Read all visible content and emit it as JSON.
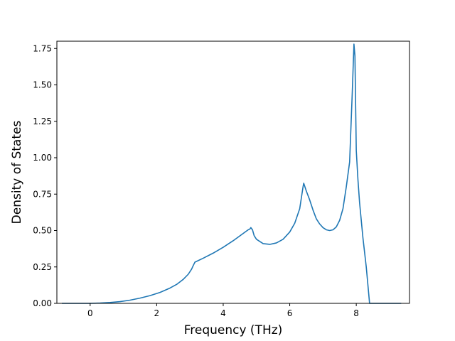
{
  "chart_data": {
    "type": "line",
    "xlabel": "Frequency (THz)",
    "ylabel": "Density of States",
    "xlim": [
      -1.0,
      9.6
    ],
    "ylim": [
      0.0,
      1.8
    ],
    "xticks": [
      0,
      2,
      4,
      6,
      8
    ],
    "yticks": [
      0.0,
      0.25,
      0.5,
      0.75,
      1.0,
      1.25,
      1.5,
      1.75
    ],
    "xtick_labels": [
      "0",
      "2",
      "4",
      "6",
      "8"
    ],
    "ytick_labels": [
      "0.00",
      "0.25",
      "0.50",
      "0.75",
      "1.00",
      "1.25",
      "1.50",
      "1.75"
    ],
    "grid": false,
    "line_color": "#1f77b4",
    "series": [
      {
        "x": [
          -0.85,
          -0.5,
          0.0,
          0.3,
          0.6,
          0.9,
          1.2,
          1.5,
          1.8,
          2.1,
          2.4,
          2.6,
          2.8,
          2.95,
          3.05,
          3.1,
          3.15,
          3.4,
          3.7,
          4.0,
          4.3,
          4.6,
          4.75,
          4.8,
          4.83,
          4.88,
          4.93,
          5.0,
          5.2,
          5.4,
          5.6,
          5.8,
          6.0,
          6.15,
          6.3,
          6.4,
          6.42,
          6.5,
          6.6,
          6.7,
          6.8,
          6.9,
          7.0,
          7.1,
          7.2,
          7.3,
          7.4,
          7.5,
          7.6,
          7.7,
          7.8,
          7.88,
          7.93,
          7.96,
          8.0,
          8.05,
          8.1,
          8.2,
          8.3,
          8.4,
          8.5,
          8.55,
          8.6,
          9.35
        ],
        "y": [
          0.0,
          0.0,
          0.0,
          0.002,
          0.006,
          0.012,
          0.022,
          0.036,
          0.053,
          0.075,
          0.105,
          0.13,
          0.165,
          0.2,
          0.235,
          0.26,
          0.283,
          0.31,
          0.345,
          0.385,
          0.43,
          0.48,
          0.505,
          0.51,
          0.52,
          0.505,
          0.465,
          0.44,
          0.41,
          0.405,
          0.415,
          0.44,
          0.49,
          0.55,
          0.65,
          0.8,
          0.825,
          0.77,
          0.71,
          0.64,
          0.58,
          0.545,
          0.52,
          0.505,
          0.5,
          0.505,
          0.525,
          0.57,
          0.65,
          0.8,
          0.97,
          1.45,
          1.78,
          1.7,
          1.05,
          0.85,
          0.69,
          0.45,
          0.25,
          0.0,
          0.0,
          0.0,
          0.0,
          0.0
        ]
      }
    ]
  }
}
